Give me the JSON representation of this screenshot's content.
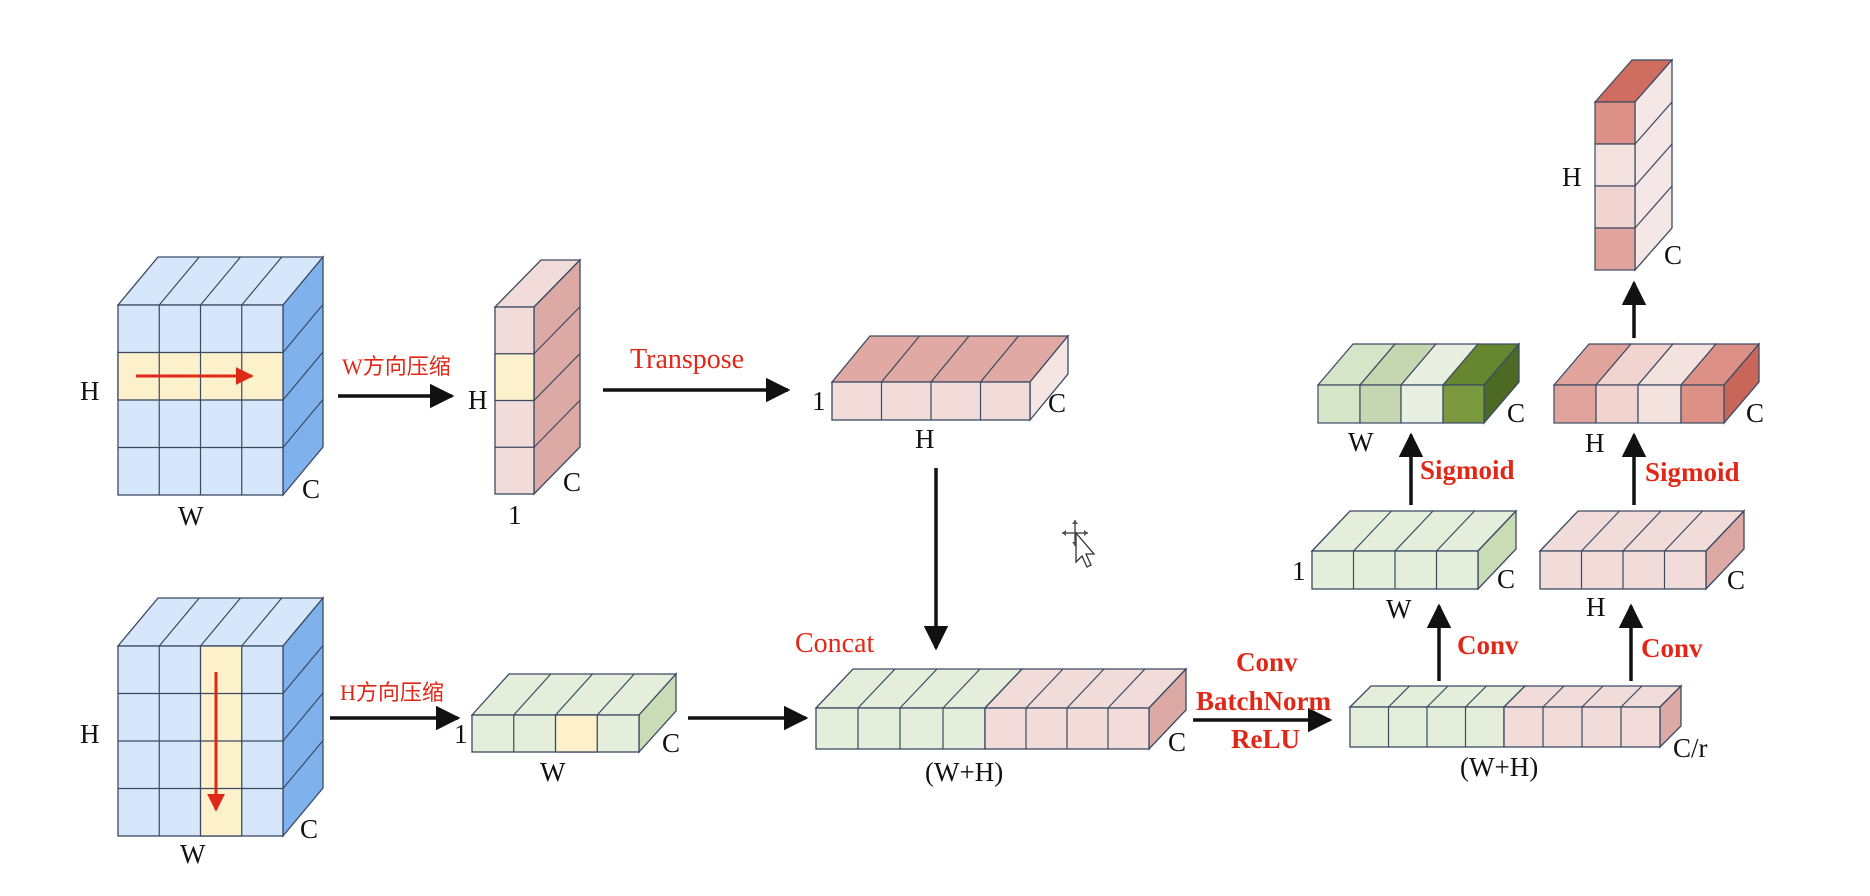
{
  "colors": {
    "blue_face": "#d6e6fb",
    "blue_side": "#7fb1ec",
    "cell_highlight": "#fdf1cc",
    "pink_face": "#f2dcda",
    "pink_side": "#dca9a5",
    "green_face": "#e4eedb",
    "green_side": "#cadcb5",
    "label_red": "#e02818",
    "arrow_black": "#111111",
    "attention_green": [
      "#d6e4c8",
      "#c5d6b0",
      "#e8efe0",
      "#7b9a3f"
    ],
    "attention_red": [
      "#e1a49c",
      "#f1d3cf",
      "#f4e2df",
      "#dd9186"
    ]
  },
  "top_branch": {
    "tensor": {
      "h_label": "H",
      "w_label": "W",
      "c_label": "C"
    },
    "pool_label": "W方向压缩",
    "pooled": {
      "h_label": "H",
      "w_label": "1",
      "c_label": "C"
    },
    "transpose_label": "Transpose",
    "transposed": {
      "one_label": "1",
      "h_label": "H",
      "c_label": "C"
    }
  },
  "bottom_branch": {
    "tensor": {
      "h_label": "H",
      "w_label": "W",
      "c_label": "C"
    },
    "pool_label": "H方向压缩",
    "pooled": {
      "one_label": "1",
      "w_label": "W",
      "c_label": "C"
    }
  },
  "concat": {
    "label": "Concat",
    "size_label": "(W+H)",
    "c_label": "C"
  },
  "conv_block": {
    "labels": [
      "Conv",
      "BatchNorm",
      "ReLU"
    ],
    "size_label": "(W+H)",
    "c_label": "C/r"
  },
  "split_w": {
    "conv_label": "Conv",
    "pre": {
      "one_label": "1",
      "w_label": "W",
      "c_label": "C"
    },
    "sigmoid_label": "Sigmoid",
    "weights": {
      "w_label": "W",
      "c_label": "C"
    }
  },
  "split_h": {
    "conv_label": "Conv",
    "pre": {
      "h_label": "H",
      "c_label": "C"
    },
    "sigmoid_label": "Sigmoid",
    "weights": {
      "h_label": "H",
      "c_label": "C"
    },
    "column": {
      "h_label": "H",
      "c_label": "C"
    }
  }
}
